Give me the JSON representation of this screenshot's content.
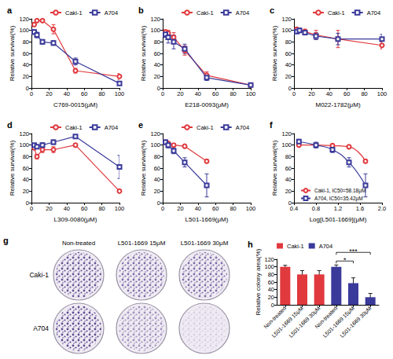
{
  "chart_data": [
    {
      "type": "line",
      "title": "a",
      "xlabel": "C769-0015(μM)",
      "ylabel": "Relative survival(%)",
      "xlim": [
        0,
        100
      ],
      "xticks": [
        0,
        20,
        40,
        60,
        80,
        100
      ],
      "ylim": [
        0,
        120
      ],
      "yticks": [
        0,
        20,
        40,
        60,
        80,
        100,
        120
      ],
      "grid": false,
      "legend": "top",
      "x": [
        3.125,
        6.25,
        12.5,
        25,
        50,
        100
      ],
      "series": [
        {
          "name": "Caki-1",
          "color": "#e0393e",
          "marker": "circle",
          "values": [
            110,
            117,
            117,
            102,
            30,
            20
          ],
          "errors": [
            3,
            3,
            2,
            8,
            4,
            5
          ]
        },
        {
          "name": "A704",
          "color": "#3a3a9a",
          "marker": "square",
          "values": [
            97,
            92,
            80,
            78,
            46,
            8
          ],
          "errors": [
            4,
            5,
            4,
            4,
            6,
            2
          ]
        }
      ]
    },
    {
      "type": "line",
      "title": "b",
      "xlabel": "E218-0093(μM)",
      "ylabel": "Relative survival(%)",
      "xlim": [
        0,
        100
      ],
      "xticks": [
        0,
        20,
        40,
        60,
        80,
        100
      ],
      "ylim": [
        0,
        120
      ],
      "yticks": [
        0,
        20,
        40,
        60,
        80,
        100,
        120
      ],
      "grid": false,
      "legend": "top",
      "x": [
        3.125,
        6.25,
        12.5,
        25,
        50,
        100
      ],
      "series": [
        {
          "name": "Caki-1",
          "color": "#e0393e",
          "marker": "circle",
          "values": [
            97,
            95,
            88,
            65,
            22,
            5
          ],
          "errors": [
            4,
            5,
            8,
            8,
            6,
            2
          ]
        },
        {
          "name": "A704",
          "color": "#3a3a9a",
          "marker": "square",
          "values": [
            93,
            88,
            80,
            68,
            18,
            5
          ],
          "errors": [
            5,
            10,
            12,
            8,
            5,
            2
          ]
        }
      ]
    },
    {
      "type": "line",
      "title": "c",
      "xlabel": "M022-1782(μM)",
      "ylabel": "Relative survival(%)",
      "xlim": [
        0,
        100
      ],
      "xticks": [
        0,
        20,
        40,
        60,
        80,
        100
      ],
      "ylim": [
        0,
        120
      ],
      "yticks": [
        0,
        20,
        40,
        60,
        80,
        100,
        120
      ],
      "grid": false,
      "legend": "top",
      "x": [
        3.125,
        6.25,
        12.5,
        25,
        50,
        100
      ],
      "series": [
        {
          "name": "Caki-1",
          "color": "#e0393e",
          "marker": "circle",
          "values": [
            102,
            100,
            98,
            92,
            85,
            74
          ],
          "errors": [
            3,
            3,
            4,
            8,
            15,
            6
          ]
        },
        {
          "name": "A704",
          "color": "#3a3a9a",
          "marker": "square",
          "values": [
            98,
            100,
            96,
            90,
            85,
            85
          ],
          "errors": [
            3,
            4,
            4,
            6,
            10,
            8
          ]
        }
      ]
    },
    {
      "type": "line",
      "title": "d",
      "xlabel": "L309-0080(μM)",
      "ylabel": "Relative survival(%)",
      "xlim": [
        0,
        100
      ],
      "xticks": [
        0,
        20,
        40,
        60,
        80,
        100
      ],
      "ylim": [
        0,
        120
      ],
      "yticks": [
        0,
        20,
        40,
        60,
        80,
        100,
        120
      ],
      "grid": false,
      "legend": "top",
      "x": [
        3.125,
        6.25,
        12.5,
        25,
        50,
        100
      ],
      "series": [
        {
          "name": "Caki-1",
          "color": "#e0393e",
          "marker": "circle",
          "values": [
            95,
            80,
            92,
            92,
            100,
            20
          ],
          "errors": [
            3,
            4,
            5,
            5,
            3,
            2
          ]
        },
        {
          "name": "A704",
          "color": "#3a3a9a",
          "marker": "square",
          "values": [
            100,
            97,
            100,
            105,
            115,
            62
          ],
          "errors": [
            3,
            3,
            4,
            4,
            3,
            20
          ]
        }
      ]
    },
    {
      "type": "line",
      "title": "e",
      "xlabel": "L501-1669(μM)",
      "ylabel": "Relative survival(%)",
      "xlim": [
        0,
        100
      ],
      "xticks": [
        0,
        20,
        40,
        60,
        80,
        100
      ],
      "ylim": [
        0,
        120
      ],
      "yticks": [
        0,
        20,
        40,
        60,
        80,
        100,
        120
      ],
      "grid": false,
      "legend": "top",
      "x": [
        3.125,
        6.25,
        12.5,
        25,
        50
      ],
      "series": [
        {
          "name": "Caki-1",
          "color": "#e0393e",
          "marker": "circle",
          "values": [
            105,
            103,
            100,
            98,
            72
          ],
          "errors": [
            3,
            3,
            3,
            2,
            3
          ]
        },
        {
          "name": "A704",
          "color": "#3a3a9a",
          "marker": "square",
          "values": [
            105,
            100,
            90,
            70,
            30
          ],
          "errors": [
            4,
            5,
            5,
            8,
            20
          ]
        }
      ]
    },
    {
      "type": "line",
      "title": "f",
      "xlabel": "Log[L501-1669](μM)",
      "ylabel": "Relative survival(%)",
      "xlim": [
        0.4,
        2.0
      ],
      "xticks": [
        0.4,
        0.8,
        1.2,
        1.6,
        {
          "value": 2,
          "label": "2.0"
        }
      ],
      "ylim": [
        0,
        120
      ],
      "yticks": [
        0,
        20,
        40,
        60,
        80,
        100,
        120
      ],
      "grid": false,
      "legend": "bottom-left",
      "x": [
        0.49,
        0.8,
        1.1,
        1.4,
        1.7
      ],
      "series": [
        {
          "name": "Caki-1, IC50=58.18μM",
          "color": "#e0393e",
          "marker": "circle",
          "line_style": "smooth",
          "values": [
            100,
            100,
            99,
            97,
            72
          ],
          "errors": [
            2,
            3,
            3,
            3,
            3
          ]
        },
        {
          "name": "A704, IC50=35.42μM",
          "color": "#3a3a9a",
          "marker": "square",
          "line_style": "smooth",
          "values": [
            106,
            100,
            92,
            70,
            30
          ],
          "errors": [
            4,
            5,
            5,
            8,
            20
          ]
        }
      ]
    },
    {
      "type": "bar",
      "title": "h",
      "ylabel": "Relative colony area(%)",
      "ylim": [
        0,
        120
      ],
      "yticks": [
        0,
        20,
        40,
        60,
        80,
        100,
        120
      ],
      "grid": false,
      "legend": "top",
      "categories": [
        "Non-treated",
        "L501-1669 15μM",
        "L501-1669 30μM",
        "Non-treated",
        "L501-1669 15μM",
        "L501-1669 30μM"
      ],
      "series": [
        {
          "name": "Caki-1",
          "color": "#e0393e",
          "values": [
            100,
            80,
            80,
            null,
            null,
            null
          ],
          "errors": [
            4,
            10,
            10,
            null,
            null,
            null
          ]
        },
        {
          "name": "A704",
          "color": "#3a3a9a",
          "values": [
            null,
            null,
            null,
            100,
            57,
            20
          ],
          "errors": [
            null,
            null,
            null,
            5,
            14,
            10
          ]
        }
      ],
      "annotations": [
        {
          "text": "*",
          "from": 3,
          "to": 4
        },
        {
          "text": "***",
          "from": 3,
          "to": 5
        }
      ]
    }
  ],
  "colony_images": {
    "title": "g",
    "columns": [
      "Non-treated",
      "L501-1669 15μM",
      "L501-1669 30μM"
    ],
    "rows": [
      "Caki-1",
      "A704"
    ]
  }
}
